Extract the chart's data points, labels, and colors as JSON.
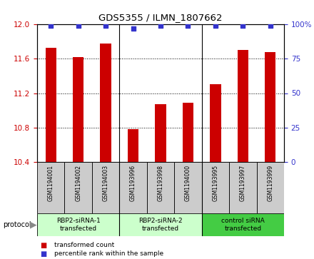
{
  "title": "GDS5355 / ILMN_1807662",
  "samples": [
    "GSM1194001",
    "GSM1194002",
    "GSM1194003",
    "GSM1193996",
    "GSM1193998",
    "GSM1194000",
    "GSM1193995",
    "GSM1193997",
    "GSM1193999"
  ],
  "bar_values": [
    11.73,
    11.62,
    11.78,
    10.78,
    11.07,
    11.09,
    11.3,
    11.7,
    11.68
  ],
  "percentile_values": [
    99,
    99,
    99,
    97,
    99,
    99,
    99,
    99,
    99
  ],
  "ylim_left": [
    10.4,
    12.0
  ],
  "ylim_right": [
    0,
    100
  ],
  "yticks_left": [
    10.4,
    10.8,
    11.2,
    11.6,
    12.0
  ],
  "yticks_right": [
    0,
    25,
    50,
    75,
    100
  ],
  "bar_color": "#cc0000",
  "dot_color": "#3333cc",
  "groups": [
    {
      "label": "RBP2-siRNA-1\ntransfected",
      "start": 0,
      "end": 2,
      "color": "#ccffcc"
    },
    {
      "label": "RBP2-siRNA-2\ntransfected",
      "start": 3,
      "end": 5,
      "color": "#ccffcc"
    },
    {
      "label": "control siRNA\ntransfected",
      "start": 6,
      "end": 8,
      "color": "#44cc44"
    }
  ],
  "protocol_label": "protocol",
  "legend_bar_label": "transformed count",
  "legend_dot_label": "percentile rank within the sample",
  "background_color": "#ffffff",
  "tick_area_color": "#cccccc",
  "grid_dotted_color": "#555555"
}
